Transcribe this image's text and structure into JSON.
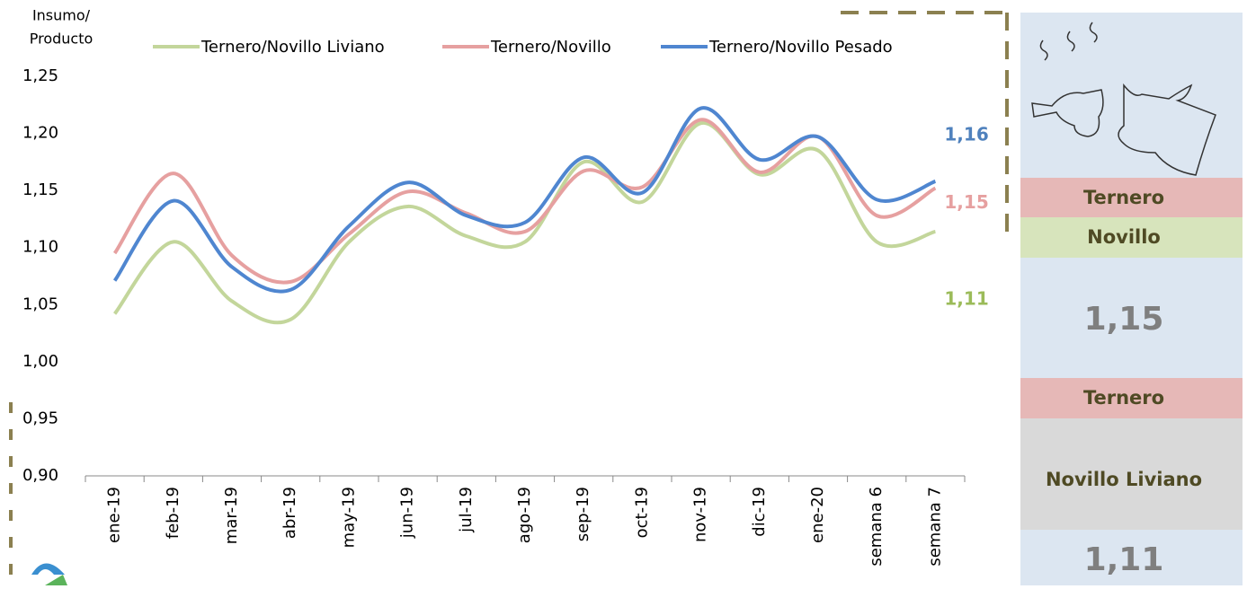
{
  "chart_data": {
    "type": "line",
    "ylabel": [
      "Insumo/",
      "Producto"
    ],
    "categories": [
      "ene-19",
      "feb-19",
      "mar-19",
      "abr-19",
      "may-19",
      "jun-19",
      "jul-19",
      "ago-19",
      "sep-19",
      "oct-19",
      "nov-19",
      "dic-19",
      "ene-20",
      "semana 6",
      "semana 7"
    ],
    "series": [
      {
        "name": "Ternero/Novillo Liviano",
        "color": "#c3d69b",
        "values": [
          1.042,
          1.105,
          1.053,
          1.037,
          1.105,
          1.136,
          1.11,
          1.105,
          1.175,
          1.14,
          1.209,
          1.164,
          1.185,
          1.105,
          1.114
        ],
        "value_labels": [
          null,
          null,
          null,
          null,
          null,
          null,
          null,
          null,
          null,
          null,
          null,
          null,
          null,
          null,
          "1,11"
        ],
        "label_color": "#9bbb59"
      },
      {
        "name": "Ternero/Novillo",
        "color": "#e6a0a0",
        "values": [
          1.095,
          1.165,
          1.093,
          1.07,
          1.112,
          1.149,
          1.13,
          1.114,
          1.167,
          1.153,
          1.212,
          1.166,
          1.197,
          1.128,
          1.152
        ],
        "value_labels": [
          null,
          null,
          null,
          null,
          null,
          null,
          null,
          null,
          null,
          null,
          null,
          null,
          null,
          null,
          "1,15"
        ],
        "label_color": "#e6a0a0"
      },
      {
        "name": "Ternero/Novillo Pesado",
        "color": "#4f86d0",
        "values": [
          1.071,
          1.141,
          1.083,
          1.063,
          1.119,
          1.157,
          1.128,
          1.122,
          1.179,
          1.148,
          1.222,
          1.177,
          1.197,
          1.142,
          1.158
        ],
        "value_labels": [
          null,
          null,
          null,
          null,
          null,
          null,
          null,
          null,
          null,
          null,
          null,
          null,
          null,
          null,
          "1,16"
        ],
        "label_color": "#4f81bd"
      }
    ],
    "ylim": [
      0.9,
      1.25
    ],
    "yticks": [
      {
        "value": 0.9,
        "label": "0,90"
      },
      {
        "value": 0.95,
        "label": "0,95"
      },
      {
        "value": 1.0,
        "label": "1,00"
      },
      {
        "value": 1.05,
        "label": "1,05"
      },
      {
        "value": 1.1,
        "label": "1,10"
      },
      {
        "value": 1.15,
        "label": "1,15"
      },
      {
        "value": 1.2,
        "label": "1,20"
      },
      {
        "value": 1.25,
        "label": "1,25"
      }
    ],
    "grid": false
  },
  "side_panel": {
    "label_1a": "Ternero",
    "label_1b": "Novillo",
    "value_1": "1,15",
    "label_2a": "Ternero",
    "label_2b": "Novillo Liviano",
    "value_2": "1,11"
  }
}
